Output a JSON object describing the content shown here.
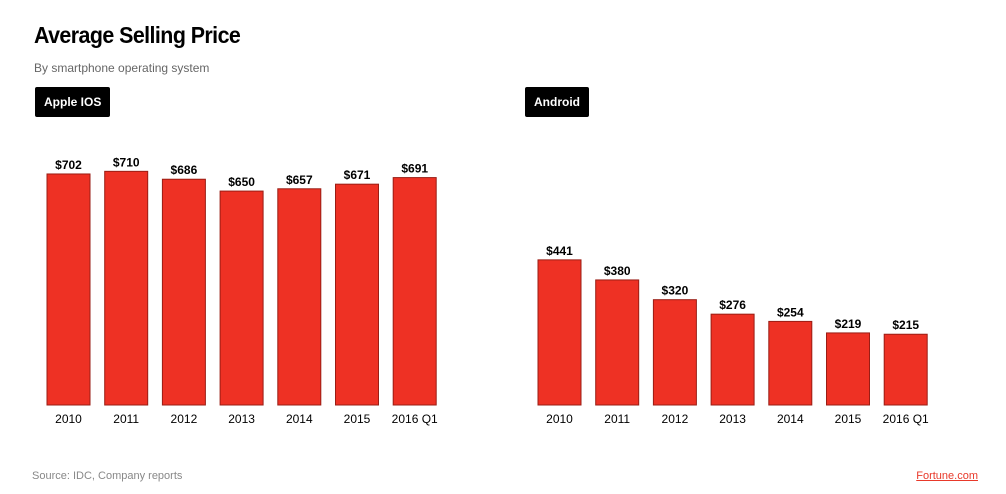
{
  "title": "Average Selling Price",
  "subtitle": "By smartphone operating system",
  "source": "Source: IDC, Company reports",
  "brand": "Fortune.com",
  "colors": {
    "bar": "#ee3124",
    "bar_border": "#9a1d14"
  },
  "chart_data": [
    {
      "type": "bar",
      "label": "Apple IOS",
      "categories": [
        "2010",
        "2011",
        "2012",
        "2013",
        "2014",
        "2015",
        "2016 Q1"
      ],
      "values": [
        702,
        710,
        686,
        650,
        657,
        671,
        691
      ],
      "value_labels": [
        "$702",
        "$710",
        "$686",
        "$650",
        "$657",
        "$671",
        "$691"
      ],
      "ylim": [
        0,
        750
      ]
    },
    {
      "type": "bar",
      "label": "Android",
      "categories": [
        "2010",
        "2011",
        "2012",
        "2013",
        "2014",
        "2015",
        "2016 Q1"
      ],
      "values": [
        441,
        380,
        320,
        276,
        254,
        219,
        215
      ],
      "value_labels": [
        "$441",
        "$380",
        "$320",
        "$276",
        "$254",
        "$219",
        "$215"
      ],
      "ylim": [
        0,
        750
      ]
    }
  ]
}
